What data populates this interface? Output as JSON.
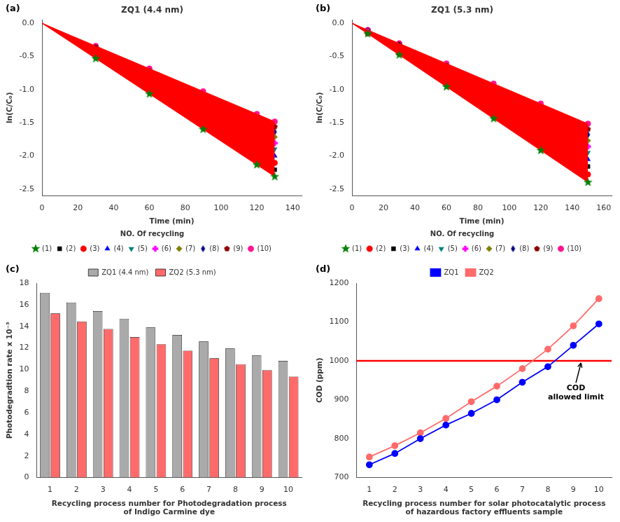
{
  "chart_data": [
    {
      "type": "fan",
      "title": "ZQ1 (4.4 nm)",
      "panel_label": "(a)",
      "xlabel": "Time (min)",
      "ylabel": "ln(C/C₀)",
      "xlim": [
        0,
        145
      ],
      "ylim": [
        -2.6,
        0.05
      ],
      "xticks": [
        0,
        20,
        40,
        60,
        80,
        100,
        120,
        140
      ],
      "yticks": [
        {
          "value": 0,
          "label": "0.0"
        },
        -0.5,
        {
          "value": -1,
          "label": "-1.0"
        },
        -1.5,
        {
          "value": -2,
          "label": "-2.0"
        },
        -2.5
      ],
      "grid": false,
      "legend": "bottom",
      "legend_title": "NO. Of recycling",
      "color": "red",
      "x": [
        0,
        30,
        60,
        90,
        120,
        130
      ],
      "series": [
        {
          "name": "(1)",
          "color": "green",
          "marker": "star",
          "values": [
            0,
            -0.534,
            -1.068,
            -1.602,
            -2.136,
            -2.314
          ]
        },
        {
          "name": "(2)",
          "color": "black",
          "marker": "square",
          "values": [
            0,
            -0.51,
            -1.02,
            -1.53,
            -2.04,
            -2.21
          ]
        },
        {
          "name": "(3)",
          "color": "red",
          "marker": "circle",
          "values": [
            0,
            -0.486,
            -0.972,
            -1.458,
            -1.944,
            -2.106
          ]
        },
        {
          "name": "(4)",
          "color": "blue",
          "marker": "triangle_up",
          "values": [
            0,
            -0.462,
            -0.924,
            -1.386,
            -1.848,
            -2.002
          ]
        },
        {
          "name": "(5)",
          "color": "teal",
          "marker": "triangle_down",
          "values": [
            0,
            -0.438,
            -0.876,
            -1.314,
            -1.752,
            -1.898
          ]
        },
        {
          "name": "(6)",
          "color": "magenta",
          "marker": "plus",
          "values": [
            0,
            -0.417,
            -0.834,
            -1.251,
            -1.668,
            -1.807
          ]
        },
        {
          "name": "(7)",
          "color": "olive",
          "marker": "diamond",
          "values": [
            0,
            -0.396,
            -0.792,
            -1.188,
            -1.584,
            -1.716
          ]
        },
        {
          "name": "(8)",
          "color": "navy",
          "marker": "thin_diamond",
          "values": [
            0,
            -0.378,
            -0.756,
            -1.134,
            -1.512,
            -1.638
          ]
        },
        {
          "name": "(9)",
          "color": "#8b0000",
          "marker": "pentagon",
          "values": [
            0,
            -0.36,
            -0.72,
            -1.08,
            -1.44,
            -1.56
          ]
        },
        {
          "name": "(10)",
          "color": "deeppink",
          "marker": "circle",
          "values": [
            0,
            -0.342,
            -0.684,
            -1.026,
            -1.368,
            -1.482
          ]
        }
      ]
    },
    {
      "type": "fan",
      "title": "ZQ1 (5.3 nm)",
      "panel_label": "(b)",
      "xlabel": "Time (min)",
      "ylabel": "ln(C/C₀)",
      "xlim": [
        0,
        165
      ],
      "ylim": [
        -2.6,
        0.05
      ],
      "xticks": [
        0,
        20,
        40,
        60,
        80,
        100,
        120,
        140,
        160
      ],
      "yticks": [
        {
          "value": 0,
          "label": "0.0"
        },
        -0.5,
        {
          "value": -1,
          "label": "-1.0"
        },
        -1.5,
        {
          "value": -2,
          "label": "-2.0"
        },
        -2.5
      ],
      "grid": false,
      "legend": "bottom",
      "legend_title": "NO. Of recycling",
      "color": "red",
      "x": [
        0,
        10,
        30,
        60,
        90,
        120,
        150
      ],
      "series": [
        {
          "name": "(1)",
          "color": "green",
          "marker": "star",
          "values": [
            0,
            -0.16,
            -0.48,
            -0.96,
            -1.44,
            -1.92,
            -2.4
          ]
        },
        {
          "name": "(2)",
          "color": "red",
          "marker": "circle",
          "values": [
            0,
            -0.152,
            -0.456,
            -0.912,
            -1.368,
            -1.824,
            -2.28
          ]
        },
        {
          "name": "(3)",
          "color": "black",
          "marker": "square",
          "values": [
            0,
            -0.144,
            -0.432,
            -0.864,
            -1.296,
            -1.728,
            -2.16
          ]
        },
        {
          "name": "(4)",
          "color": "blue",
          "marker": "triangle_up",
          "values": [
            0,
            -0.137,
            -0.411,
            -0.822,
            -1.233,
            -1.644,
            -2.055
          ]
        },
        {
          "name": "(5)",
          "color": "teal",
          "marker": "triangle_down",
          "values": [
            0,
            -0.13,
            -0.39,
            -0.78,
            -1.17,
            -1.56,
            -1.95
          ]
        },
        {
          "name": "(6)",
          "color": "magenta",
          "marker": "plus",
          "values": [
            0,
            -0.124,
            -0.372,
            -0.744,
            -1.116,
            -1.488,
            -1.86
          ]
        },
        {
          "name": "(7)",
          "color": "olive",
          "marker": "diamond",
          "values": [
            0,
            -0.118,
            -0.354,
            -0.708,
            -1.062,
            -1.416,
            -1.77
          ]
        },
        {
          "name": "(8)",
          "color": "navy",
          "marker": "thin_diamond",
          "values": [
            0,
            -0.112,
            -0.336,
            -0.672,
            -1.008,
            -1.344,
            -1.68
          ]
        },
        {
          "name": "(9)",
          "color": "#8b0000",
          "marker": "pentagon",
          "values": [
            0,
            -0.1065,
            -0.3195,
            -0.639,
            -0.9585,
            -1.278,
            -1.5975
          ]
        },
        {
          "name": "(10)",
          "color": "deeppink",
          "marker": "circle",
          "values": [
            0,
            -0.101,
            -0.303,
            -0.606,
            -0.909,
            -1.212,
            -1.515
          ]
        }
      ]
    },
    {
      "type": "bar",
      "panel_label": "(c)",
      "xlabel": "Recycling process number for Photodegradation process\nof Indigo Carmine dye",
      "ylabel": "Photodegradtion rate x 10⁻³",
      "categories": [
        1,
        2,
        3,
        4,
        5,
        6,
        7,
        8,
        9,
        10
      ],
      "ylim": [
        0,
        18
      ],
      "yticks": [
        0,
        2,
        4,
        6,
        8,
        10,
        12,
        14,
        16,
        18
      ],
      "grid": false,
      "legend": "top",
      "series": [
        {
          "name": "ZQ1 (4.4 nm)",
          "color": "#aaaaaa",
          "values": [
            17.1,
            16.2,
            15.4,
            14.7,
            13.9,
            13.2,
            12.6,
            11.95,
            11.3,
            10.8
          ]
        },
        {
          "name": "ZQ2 (5.3 nm)",
          "color": "#ff6b6b",
          "values": [
            15.2,
            14.45,
            13.75,
            13.0,
            12.35,
            11.75,
            11.05,
            10.5,
            9.95,
            9.35
          ]
        }
      ]
    },
    {
      "type": "line",
      "panel_label": "(d)",
      "xlabel": "Recycling process number for solar photocatalytic process\nof hazardous factory effluents sample",
      "ylabel": "COD (ppm)",
      "x": [
        1,
        2,
        3,
        4,
        5,
        6,
        7,
        8,
        9,
        10
      ],
      "xlim": [
        0.5,
        10.5
      ],
      "xticks": [
        1,
        2,
        3,
        4,
        5,
        6,
        7,
        8,
        9,
        10
      ],
      "ylim": [
        700,
        1200
      ],
      "yticks": [
        700,
        800,
        900,
        1000,
        1100,
        1200
      ],
      "grid": false,
      "legend": "top",
      "series": [
        {
          "name": "ZQ1",
          "color": "blue",
          "marker": "circle",
          "values": [
            733,
            762,
            800,
            835,
            865,
            900,
            945,
            985,
            1040,
            1095
          ]
        },
        {
          "name": "ZQ2",
          "color": "#ff6b6b",
          "marker": "circle",
          "values": [
            753,
            782,
            815,
            852,
            895,
            935,
            980,
            1030,
            1090,
            1160
          ]
        }
      ],
      "reference_line": {
        "value": 1000,
        "color": "red"
      },
      "annotations": [
        {
          "text": "COD\nallowed limit",
          "xy": [
            9.3,
            1000
          ],
          "xytext": [
            9.1,
            940
          ]
        }
      ]
    }
  ]
}
